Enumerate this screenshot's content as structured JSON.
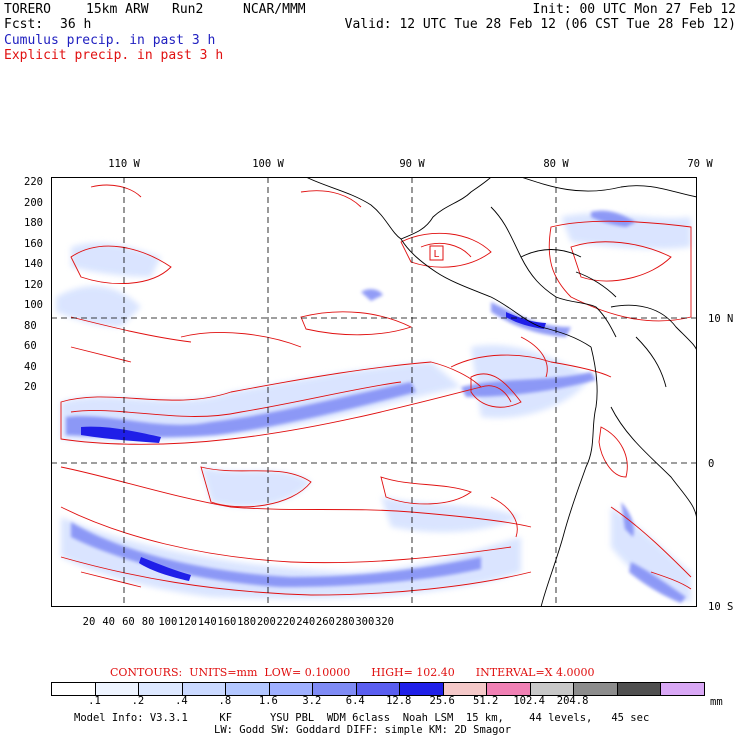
{
  "header": {
    "model": "TORERO",
    "resolution": "15km ARW",
    "run": "Run2",
    "org": "NCAR/MMM",
    "init": "Init: 00 UTC Mon 27 Feb 12",
    "fcst_label": "Fcst:",
    "fcst_value": "36 h",
    "valid": "Valid: 12 UTC Tue 28 Feb 12 (06 CST Tue 28 Feb 12)",
    "field1": "Cumulus precip. in past 3 h",
    "field2": "Explicit precip. in past 3 h"
  },
  "axes": {
    "top_lon": [
      "110 W",
      "100 W",
      "90 W",
      "80 W",
      "70 W"
    ],
    "right_lat": [
      "10 N",
      "0",
      "10 S"
    ],
    "left_y": [
      "220",
      "200",
      "180",
      "160",
      "140",
      "120",
      "100",
      "80",
      "60",
      "40",
      "20"
    ],
    "bottom_x": [
      "20",
      "40",
      "60",
      "80",
      "100",
      "120",
      "140",
      "160",
      "180",
      "200",
      "220",
      "240",
      "260",
      "280",
      "300",
      "320"
    ]
  },
  "markers": {
    "low": "L"
  },
  "contours_info": {
    "prefix": "CONTOURS:",
    "units": "UNITS=mm",
    "low": "LOW= 0.10000",
    "high": "HIGH= 102.40",
    "interval": "INTERVAL=X 4.0000"
  },
  "colorbar": {
    "colors": [
      "#ffffff",
      "#eef4ff",
      "#dde8ff",
      "#cad9ff",
      "#b3c7ff",
      "#9fb0ff",
      "#7f8bf5",
      "#5a5ef0",
      "#1f1fe8",
      "#f5c9c9",
      "#f080b4",
      "#c8c8c8",
      "#8c8c8c",
      "#505050",
      "#d9a8f5"
    ],
    "labels": [
      ".1",
      ".2",
      ".4",
      ".8",
      "1.6",
      "3.2",
      "6.4",
      "12.8",
      "25.6",
      "51.2",
      "102.4",
      "204.8"
    ],
    "unit": "mm"
  },
  "footer": {
    "line1": "Model Info: V3.3.1     KF      YSU PBL  WDM 6class  Noah LSM  15 km,    44 levels,   45 sec",
    "line2": "LW: Godd SW: Goddard DIFF: simple KM: 2D Smagor"
  }
}
